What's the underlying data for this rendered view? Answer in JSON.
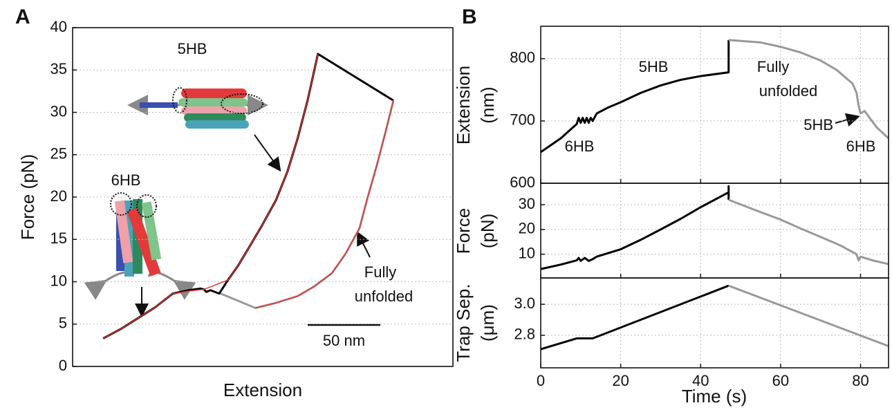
{
  "chart_data": [
    {
      "type": "line",
      "panel_label": "A",
      "xlabel": "Extension",
      "ylabel": "Force (pN)",
      "xlim": [
        0,
        262
      ],
      "ylim": [
        0,
        40
      ],
      "yticks": [
        0,
        5,
        10,
        15,
        20,
        25,
        30,
        35,
        40
      ],
      "grid": true,
      "annotations": [
        "5HB",
        "6HB",
        "Fully",
        "unfolded"
      ],
      "scale_bar": {
        "value": 50,
        "label": "50 nm"
      },
      "series": [
        {
          "color": "#000000",
          "width": 3,
          "x": [
            21,
            33,
            45,
            57,
            69,
            80,
            88,
            90.5,
            92,
            95,
            101,
            104,
            107,
            114,
            121,
            130,
            140,
            148,
            155,
            162,
            169,
            221
          ],
          "values": [
            3.3,
            4.4,
            5.7,
            7.0,
            8.6,
            9.0,
            9.2,
            9.1,
            8.8,
            9.0,
            8.6,
            9.4,
            10.2,
            11.9,
            13.9,
            16.5,
            19.6,
            23.0,
            26.9,
            31.5,
            36.9,
            31.4
          ]
        },
        {
          "color": "#999999",
          "width": 3,
          "x": [
            221,
            215,
            209.5,
            203,
            197.6,
            188,
            178.6,
            166,
            155,
            140,
            126,
            102
          ],
          "values": [
            31.4,
            27.3,
            23.7,
            19.8,
            16.3,
            13.3,
            11.0,
            9.4,
            8.3,
            7.5,
            6.9,
            8.6
          ]
        },
        {
          "color": "#e8322e",
          "width": 1.5,
          "x": [
            21,
            33,
            45,
            57,
            69,
            80,
            90.5,
            107,
            114,
            121,
            130,
            140,
            148,
            155,
            162,
            169
          ],
          "values": [
            3.3,
            4.4,
            5.7,
            7.0,
            8.6,
            8.9,
            9.1,
            10.2,
            11.9,
            13.9,
            16.5,
            19.6,
            23.0,
            26.9,
            31.5,
            36.9
          ]
        },
        {
          "color": "#e8322e",
          "width": 1.5,
          "x": [
            126,
            140,
            155,
            166,
            178.6,
            188,
            197.6,
            203,
            209.5,
            215,
            221
          ],
          "values": [
            6.9,
            7.5,
            8.3,
            9.4,
            11.0,
            13.3,
            16.3,
            19.8,
            23.7,
            27.3,
            31.4
          ]
        }
      ]
    },
    {
      "type": "line",
      "panel_label": "B",
      "ylabel": [
        "Extension",
        "(nm)"
      ],
      "xlim": [
        0,
        87
      ],
      "xticks": [
        0,
        20,
        40,
        60,
        80
      ],
      "show_xtick_labels": false,
      "ylim": [
        600,
        852
      ],
      "yticks": [
        600,
        700,
        800
      ],
      "grid": true,
      "annotations": [
        "5HB",
        "6HB",
        "Fully",
        "unfolded",
        "5HB",
        "6HB"
      ],
      "series": [
        {
          "color": "#000000",
          "width": 3,
          "x": [
            0,
            5,
            9,
            9.5,
            10,
            10.5,
            11,
            11.5,
            12,
            12.5,
            13,
            14,
            17,
            20,
            25,
            30,
            35,
            40,
            47,
            47
          ],
          "values": [
            650,
            672,
            695,
            705,
            697,
            705,
            697,
            705,
            697,
            705,
            700,
            712,
            722,
            730,
            745,
            757,
            766,
            772,
            778,
            830
          ]
        },
        {
          "color": "#999999",
          "width": 3,
          "x": [
            47,
            55,
            60,
            65,
            70,
            74,
            78,
            79,
            79.5,
            80,
            81,
            84,
            87
          ],
          "values": [
            830,
            826,
            819,
            810,
            797,
            782,
            760,
            745,
            725,
            712,
            716,
            690,
            672
          ]
        }
      ]
    },
    {
      "type": "line",
      "ylabel": [
        "Force",
        "(pN)"
      ],
      "xlim": [
        0,
        87
      ],
      "xticks": [
        0,
        20,
        40,
        60,
        80
      ],
      "show_xtick_labels": false,
      "ylim": [
        0.4,
        38.7
      ],
      "yticks": [
        10,
        20,
        30
      ],
      "grid": true,
      "series": [
        {
          "color": "#000000",
          "width": 3,
          "x": [
            0,
            5,
            9,
            9.5,
            10,
            11,
            12,
            13,
            14,
            20,
            25,
            30,
            35,
            40,
            47,
            47,
            47
          ],
          "values": [
            4,
            5.8,
            7.5,
            8.5,
            7.3,
            8.5,
            7.3,
            8,
            9,
            12,
            15.8,
            20,
            24.3,
            29,
            35,
            37.5,
            32
          ]
        },
        {
          "color": "#999999",
          "width": 3,
          "x": [
            47,
            55,
            60,
            65,
            70,
            75,
            79,
            79.5,
            80,
            83,
            87
          ],
          "values": [
            32,
            27,
            24,
            20.4,
            17,
            13.5,
            10,
            7.5,
            9,
            7.5,
            6
          ]
        }
      ]
    },
    {
      "type": "line",
      "ylabel": [
        "Trap Sep.",
        "(μm)"
      ],
      "xlabel": "Time (s)",
      "xlim": [
        0,
        87
      ],
      "xticks": [
        0,
        20,
        40,
        60,
        80
      ],
      "show_xtick_labels": true,
      "ylim": [
        2.59,
        3.17
      ],
      "yticks": [
        {
          "value": 2.8,
          "label": "2.8"
        },
        {
          "value": 3,
          "label": "3.0"
        }
      ],
      "grid": true,
      "series": [
        {
          "color": "#000000",
          "width": 3,
          "x": [
            0,
            9,
            13,
            47
          ],
          "values": [
            2.71,
            2.78,
            2.78,
            3.12
          ]
        },
        {
          "color": "#999999",
          "width": 3,
          "x": [
            47,
            87
          ],
          "values": [
            3.12,
            2.73
          ]
        }
      ]
    }
  ]
}
